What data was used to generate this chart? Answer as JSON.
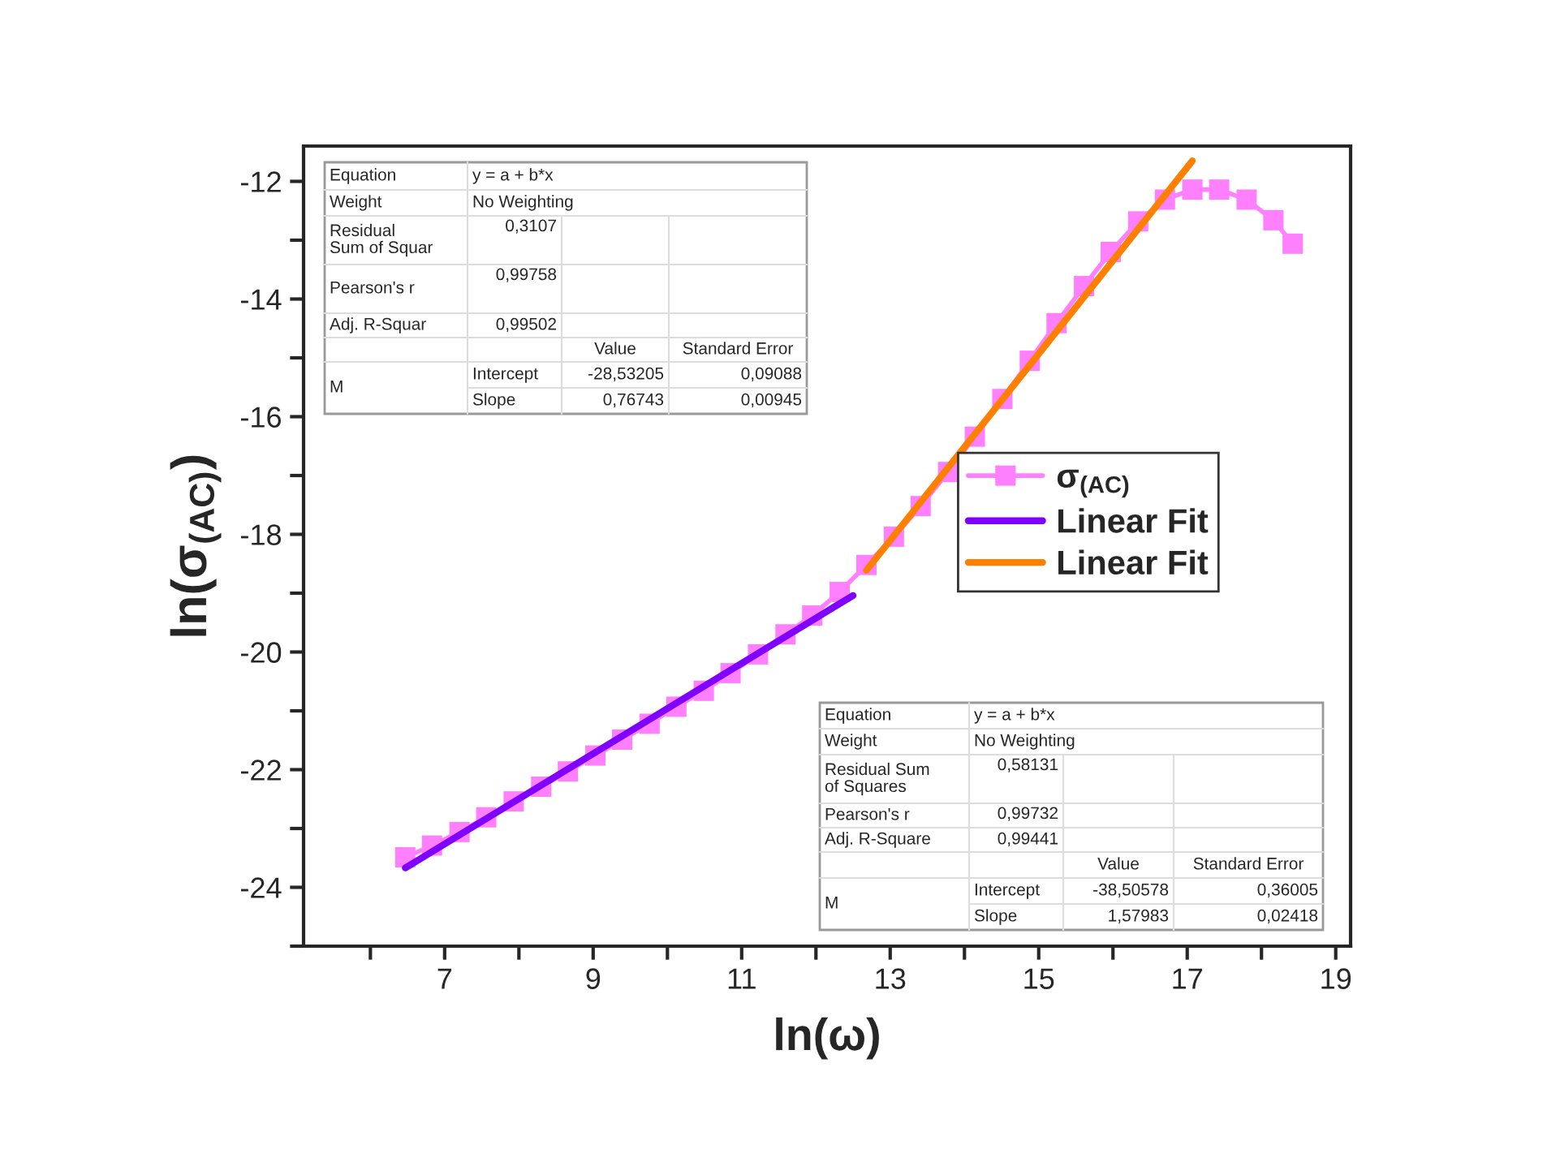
{
  "chart_data": {
    "type": "line",
    "xlabel": "ln(ω)",
    "ylabel": "ln(σ$_{(AC)}$)",
    "xlim": [
      5.1,
      19.2
    ],
    "ylim": [
      -25,
      -11.4
    ],
    "xticks": [
      {
        "value": 6,
        "label": null
      },
      7,
      {
        "value": 8,
        "label": null
      },
      9,
      {
        "value": 10,
        "label": null
      },
      11,
      {
        "value": 12,
        "label": null
      },
      13,
      {
        "value": 14,
        "label": null
      },
      15,
      {
        "value": 16,
        "label": null
      },
      17,
      {
        "value": 18,
        "label": null
      },
      19
    ],
    "yticks": [
      {
        "value": -25,
        "label": null
      },
      -24,
      {
        "value": -23,
        "label": null
      },
      -22,
      {
        "value": -21,
        "label": null
      },
      -20,
      {
        "value": -19,
        "label": null
      },
      -18,
      {
        "value": -17,
        "label": null
      },
      -16,
      {
        "value": -15,
        "label": null
      },
      -14,
      {
        "value": -13,
        "label": null
      },
      -12
    ],
    "grid": false,
    "legend": "right",
    "series": [
      {
        "name": "σ$_{(AC)}$",
        "marker": "square",
        "color": "#ff80ff",
        "x": [
          6.47,
          6.83,
          7.2,
          7.56,
          7.93,
          8.3,
          8.66,
          9.03,
          9.39,
          9.76,
          10.12,
          10.49,
          10.85,
          11.22,
          11.59,
          11.95,
          12.32,
          12.68,
          13.05,
          13.41,
          13.78,
          14.14,
          14.51,
          14.88,
          15.24,
          15.61,
          15.97,
          16.34,
          16.7,
          17.07,
          17.43,
          17.8,
          18.16,
          18.42
        ],
        "values": [
          -23.49,
          -23.29,
          -23.06,
          -22.81,
          -22.54,
          -22.29,
          -22.03,
          -21.76,
          -21.49,
          -21.22,
          -20.93,
          -20.66,
          -20.36,
          -20.04,
          -19.7,
          -19.38,
          -18.98,
          -18.52,
          -18.04,
          -17.52,
          -16.94,
          -16.34,
          -15.7,
          -15.05,
          -14.41,
          -13.78,
          -13.2,
          -12.68,
          -12.31,
          -12.14,
          -12.14,
          -12.31,
          -12.66,
          -13.06
        ]
      },
      {
        "name": "Linear Fit",
        "marker": "none",
        "color": "#8000ff",
        "x": [
          6.47,
          12.5
        ],
        "values": [
          -23.67,
          -19.04
        ]
      },
      {
        "name": "Linear Fit",
        "marker": "none",
        "color": "#ff8000",
        "x": [
          12.68,
          17.07
        ],
        "values": [
          -18.61,
          -11.65
        ]
      }
    ],
    "annotations": [
      "Equation",
      "y = a + b*x",
      "Weight",
      "No Weighting",
      "Residual\nSum of Squar",
      "0,3107",
      "Pearson's r",
      "0,99758",
      "Adj. R-Squar",
      "0,99502",
      "Value",
      "Standard Error",
      "M",
      "Intercept",
      "-28,53205",
      "0,09088",
      "Slope",
      "0,76743",
      "0,00945",
      "Equation",
      "y = a + b*x",
      "Weight",
      "No Weighting",
      "Residual Sum\nof Squares",
      "0,58131",
      "Pearson's r",
      "0,99732",
      "Adj. R-Square",
      "0,99441",
      "Value",
      "Standard Error",
      "M",
      "Intercept",
      "-38,50578",
      "0,36005",
      "Slope",
      "1,57983",
      "0,02418"
    ]
  }
}
